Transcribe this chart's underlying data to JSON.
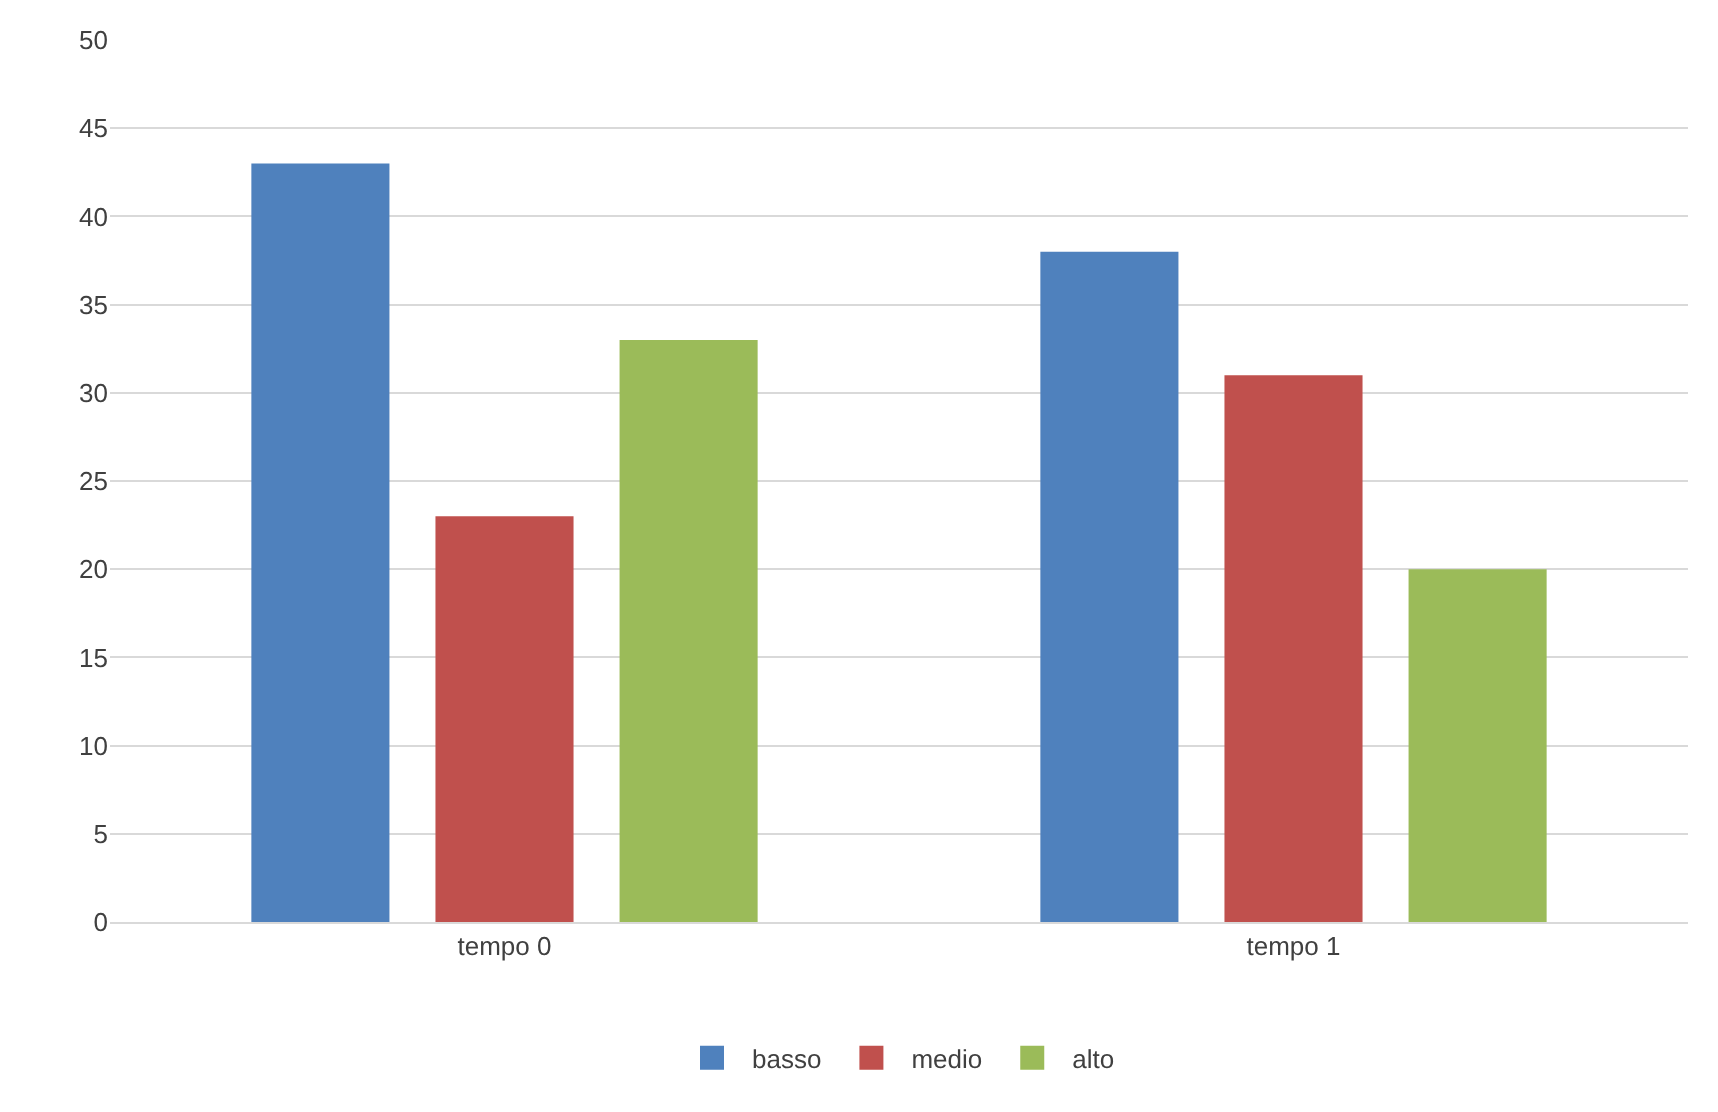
{
  "chart_data": {
    "type": "bar",
    "categories": [
      "tempo 0",
      "tempo 1"
    ],
    "series": [
      {
        "name": "basso",
        "color": "#4f81bd",
        "values": [
          43,
          38
        ]
      },
      {
        "name": "medio",
        "color": "#c0504d",
        "values": [
          23,
          31
        ]
      },
      {
        "name": "alto",
        "color": "#9bbb59",
        "values": [
          33,
          20
        ]
      }
    ],
    "ylim": [
      0,
      50
    ],
    "yticks": [
      0,
      5,
      10,
      15,
      20,
      25,
      30,
      35,
      40,
      45,
      50
    ],
    "grid": "y",
    "legend": "bottom"
  }
}
